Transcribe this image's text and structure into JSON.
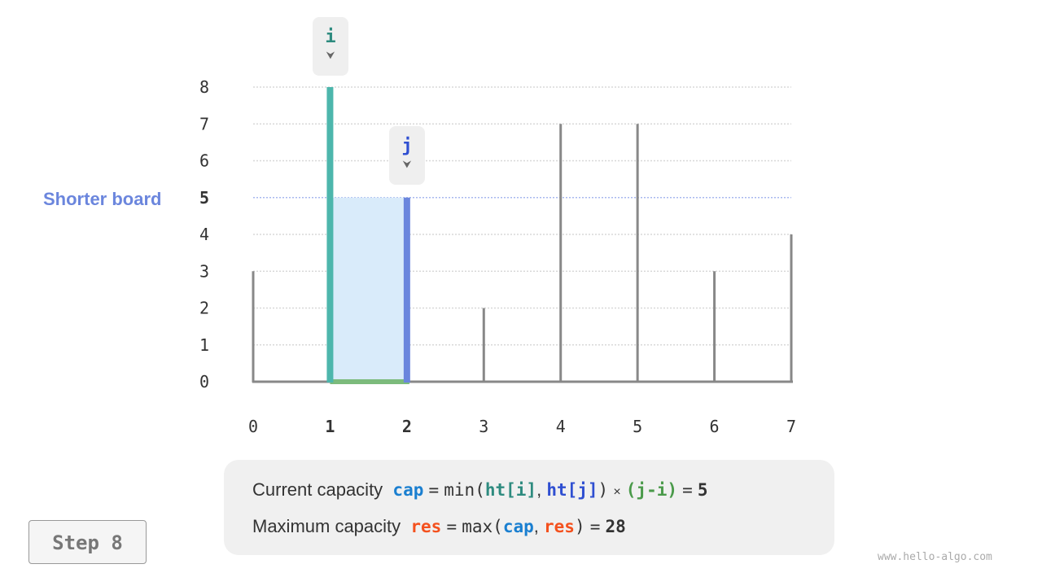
{
  "chart_data": {
    "type": "bar",
    "heights": [
      3,
      8,
      5,
      2,
      7,
      7,
      3,
      4
    ],
    "x_ticks": [
      "0",
      "1",
      "2",
      "3",
      "4",
      "5",
      "6",
      "7"
    ],
    "y_ticks": [
      "0",
      "1",
      "2",
      "3",
      "4",
      "5",
      "6",
      "7",
      "8"
    ],
    "ylim": [
      0,
      8
    ],
    "i": 1,
    "j": 2,
    "water_level": 5,
    "colors": {
      "i": "#4db6ac",
      "j": "#6b86dd",
      "water": "#d9ebfa",
      "base": "#7cbb7c",
      "bar": "#888888",
      "i_label": "#2e8b7f",
      "j_label": "#2f4fd1"
    }
  },
  "pointers": {
    "i": "i",
    "j": "j",
    "arrow": "⮟"
  },
  "shorter_board_label": "Shorter board",
  "formula": {
    "line1": {
      "label": "Current capacity",
      "cap": "cap",
      "eq": "=",
      "min": "min(",
      "hti": "ht[i]",
      "comma": ",",
      "htj": "ht[j]",
      "close": ")",
      "times": "×",
      "ji": "(j-i)",
      "eq2": "=",
      "value": "5"
    },
    "line2": {
      "label": "Maximum capacity",
      "res": "res",
      "eq": "=",
      "max": "max(",
      "cap": "cap",
      "comma": ",",
      "res2": "res",
      "close": ")",
      "eq2": "=",
      "value": "28"
    },
    "colors": {
      "cap": "#1a7fd0",
      "res": "#f4511e",
      "hti": "#2e8b7f",
      "htj": "#2f4fd1",
      "ji": "#4a9a4a"
    }
  },
  "step_label": "Step 8",
  "watermark": "www.hello-algo.com"
}
